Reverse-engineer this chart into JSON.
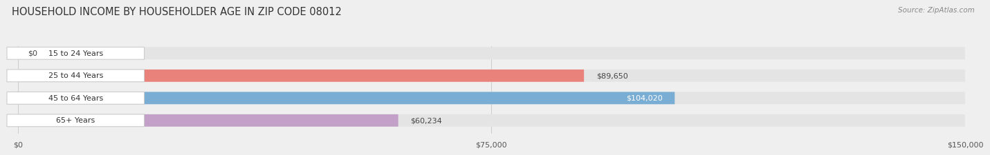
{
  "title": "HOUSEHOLD INCOME BY HOUSEHOLDER AGE IN ZIP CODE 08012",
  "source": "Source: ZipAtlas.com",
  "categories": [
    "15 to 24 Years",
    "25 to 44 Years",
    "45 to 64 Years",
    "65+ Years"
  ],
  "values": [
    0,
    89650,
    104020,
    60234
  ],
  "bar_colors": [
    "#f5c896",
    "#e8827a",
    "#7aadd4",
    "#c3a0c8"
  ],
  "label_colors": [
    "#444444",
    "#444444",
    "#ffffff",
    "#444444"
  ],
  "value_inside": [
    false,
    false,
    true,
    false
  ],
  "x_max": 150000,
  "x_ticks": [
    0,
    75000,
    150000
  ],
  "x_tick_labels": [
    "$0",
    "$75,000",
    "$150,000"
  ],
  "background_color": "#efefef",
  "bar_background_color": "#e4e4e4",
  "title_fontsize": 10.5,
  "source_fontsize": 7.5,
  "tick_fontsize": 8,
  "label_fontsize": 8,
  "value_labels": [
    "$0",
    "$89,650",
    "$104,020",
    "$60,234"
  ]
}
